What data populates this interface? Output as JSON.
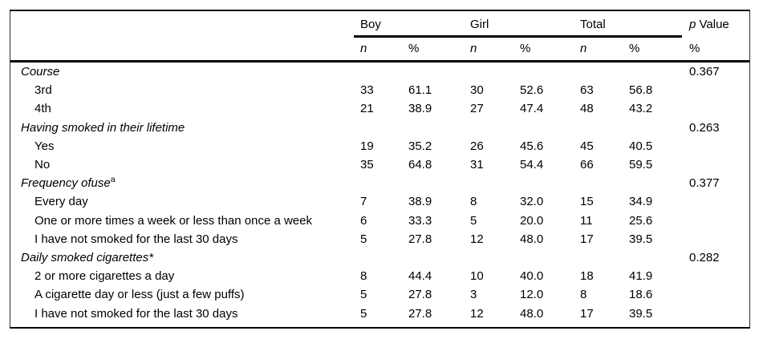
{
  "header": {
    "groups": [
      "Boy",
      "Girl",
      "Total"
    ],
    "p_value": {
      "italic": "p",
      "rest": "Value"
    },
    "subheaders": [
      "n",
      "%",
      "n",
      "%",
      "n",
      "%",
      "%"
    ]
  },
  "rows": [
    {
      "label": "Course",
      "category": true,
      "sup": "",
      "boy_n": "",
      "boy_pct": "",
      "girl_n": "",
      "girl_pct": "",
      "total_n": "",
      "total_pct": "",
      "p": "0.367"
    },
    {
      "label": "3rd",
      "category": false,
      "sup": "",
      "boy_n": "33",
      "boy_pct": "61.1",
      "girl_n": "30",
      "girl_pct": "52.6",
      "total_n": "63",
      "total_pct": "56.8",
      "p": ""
    },
    {
      "label": "4th",
      "category": false,
      "sup": "",
      "boy_n": "21",
      "boy_pct": "38.9",
      "girl_n": "27",
      "girl_pct": "47.4",
      "total_n": "48",
      "total_pct": "43.2",
      "p": ""
    },
    {
      "label": "Having smoked in their lifetime",
      "category": true,
      "sup": "",
      "boy_n": "",
      "boy_pct": "",
      "girl_n": "",
      "girl_pct": "",
      "total_n": "",
      "total_pct": "",
      "p": "0.263"
    },
    {
      "label": "Yes",
      "category": false,
      "sup": "",
      "boy_n": "19",
      "boy_pct": "35.2",
      "girl_n": "26",
      "girl_pct": "45.6",
      "total_n": "45",
      "total_pct": "40.5",
      "p": ""
    },
    {
      "label": "No",
      "category": false,
      "sup": "",
      "boy_n": "35",
      "boy_pct": "64.8",
      "girl_n": "31",
      "girl_pct": "54.4",
      "total_n": "66",
      "total_pct": "59.5",
      "p": ""
    },
    {
      "label": "Frequency ofuse",
      "category": true,
      "sup": "a",
      "boy_n": "",
      "boy_pct": "",
      "girl_n": "",
      "girl_pct": "",
      "total_n": "",
      "total_pct": "",
      "p": "0.377"
    },
    {
      "label": "Every day",
      "category": false,
      "sup": "",
      "boy_n": "7",
      "boy_pct": "38.9",
      "girl_n": "8",
      "girl_pct": "32.0",
      "total_n": "15",
      "total_pct": "34.9",
      "p": ""
    },
    {
      "label": "One or more times a week or less than once a week",
      "category": false,
      "sup": "",
      "boy_n": "6",
      "boy_pct": "33.3",
      "girl_n": "5",
      "girl_pct": "20.0",
      "total_n": "11",
      "total_pct": "25.6",
      "p": ""
    },
    {
      "label": "I have not smoked for the last 30 days",
      "category": false,
      "sup": "",
      "boy_n": "5",
      "boy_pct": "27.8",
      "girl_n": "12",
      "girl_pct": "48.0",
      "total_n": "17",
      "total_pct": "39.5",
      "p": ""
    },
    {
      "label": "Daily smoked cigarettes*",
      "category": true,
      "sup": "",
      "boy_n": "",
      "boy_pct": "",
      "girl_n": "",
      "girl_pct": "",
      "total_n": "",
      "total_pct": "",
      "p": "0.282"
    },
    {
      "label": "2 or more cigarettes a day",
      "category": false,
      "sup": "",
      "boy_n": "8",
      "boy_pct": "44.4",
      "girl_n": "10",
      "girl_pct": "40.0",
      "total_n": "18",
      "total_pct": "41.9",
      "p": ""
    },
    {
      "label": "A cigarette day or less (just a few puffs)",
      "category": false,
      "sup": "",
      "boy_n": "5",
      "boy_pct": "27.8",
      "girl_n": "3",
      "girl_pct": "12.0",
      "total_n": "8",
      "total_pct": "18.6",
      "p": ""
    },
    {
      "label": "I have not smoked for the last 30 days",
      "category": false,
      "sup": "",
      "boy_n": "5",
      "boy_pct": "27.8",
      "girl_n": "12",
      "girl_pct": "48.0",
      "total_n": "17",
      "total_pct": "39.5",
      "p": ""
    }
  ]
}
